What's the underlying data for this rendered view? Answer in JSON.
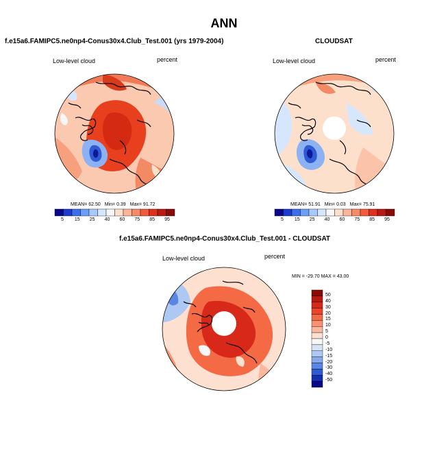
{
  "figure": {
    "title": "ANN"
  },
  "panels": [
    {
      "id": "model",
      "title": "f.e15a6.FAMIPC5.ne0np4-Conus30x4.Club_Test.001 (yrs 1979-2004)",
      "variable": "Low-level cloud",
      "units": "percent",
      "stats": {
        "mean_label": "MEAN=",
        "mean": "62.50",
        "min_label": "Min=",
        "min": "0.39",
        "max_label": "Max=",
        "max": "91.72"
      },
      "colorbar": {
        "labels": [
          "5",
          "15",
          "25",
          "40",
          "60",
          "75",
          "85",
          "95"
        ],
        "colors": [
          "#08088a",
          "#1c3cd0",
          "#3b6ff0",
          "#6f9ef7",
          "#a9c8fb",
          "#d6e6fc",
          "#f7f7f7",
          "#fde0cc",
          "#fbb59a",
          "#f78a68",
          "#f25a3a",
          "#e0301d",
          "#b81a12",
          "#8a0a08"
        ]
      }
    },
    {
      "id": "obs",
      "title": "CLOUDSAT",
      "variable": "Low-level cloud",
      "units": "percent",
      "stats": {
        "mean_label": "MEAN=",
        "mean": "51.91",
        "min_label": "Min=",
        "min": "0.03",
        "max_label": "Max=",
        "max": "75.91"
      },
      "colorbar": {
        "labels": [
          "5",
          "15",
          "25",
          "40",
          "60",
          "75",
          "85",
          "95"
        ],
        "colors": [
          "#08088a",
          "#1c3cd0",
          "#3b6ff0",
          "#6f9ef7",
          "#a9c8fb",
          "#d6e6fc",
          "#f7f7f7",
          "#fde0cc",
          "#fbb59a",
          "#f78a68",
          "#f25a3a",
          "#e0301d",
          "#b81a12",
          "#8a0a08"
        ]
      }
    },
    {
      "id": "diff",
      "title": "f.e15a6.FAMIPC5.ne0np4-Conus30x4.Club_Test.001 - CLOUDSAT",
      "variable": "Low-level cloud",
      "units": "percent",
      "stats_text": "MIN = -29.70 MAX = 43.00",
      "colorbar": {
        "labels": [
          "50",
          "40",
          "30",
          "20",
          "15",
          "10",
          "5",
          "0",
          "-5",
          "-10",
          "-15",
          "-20",
          "-30",
          "-40",
          "-50"
        ],
        "colors": [
          "#8a0a08",
          "#b81a12",
          "#d8281a",
          "#ec4428",
          "#f46a45",
          "#f99070",
          "#fcb79e",
          "#fde0d0",
          "#f7f7f7",
          "#d6e4f8",
          "#aec8f4",
          "#86a9ee",
          "#5a86e4",
          "#2f5ad3",
          "#1230b0",
          "#08088a"
        ]
      }
    }
  ]
}
